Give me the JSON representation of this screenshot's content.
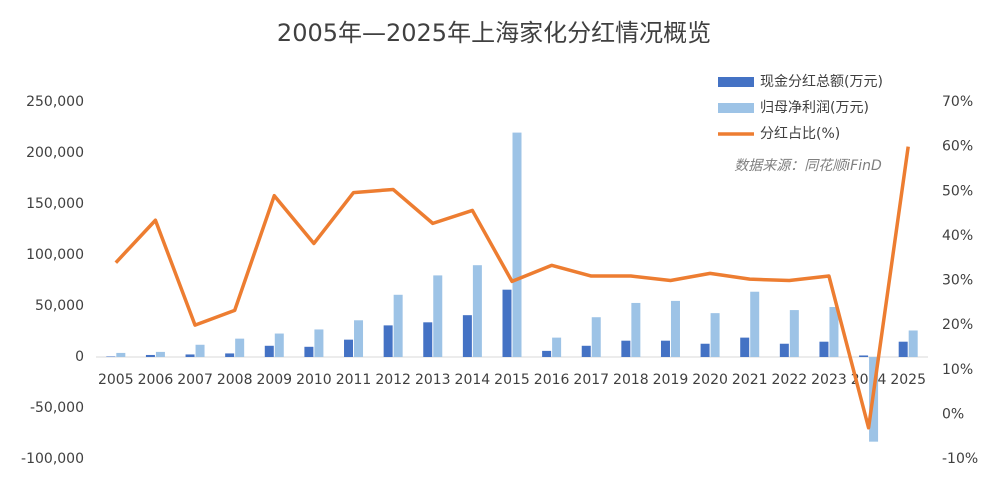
{
  "chart_data": {
    "type": "bar-line",
    "title": "2005年—2025年上海家化分红情况概览",
    "annotation": "数据来源：同花顺iFinD",
    "categories": [
      "2005",
      "2006",
      "2007",
      "2008",
      "2009",
      "2010",
      "2011",
      "2012",
      "2013",
      "2014",
      "2015",
      "2016",
      "2017",
      "2018",
      "2019",
      "2020",
      "2021",
      "2022",
      "2023",
      "2024",
      "2025"
    ],
    "series": [
      {
        "name": "现金分红总额(万元)",
        "color": "#4472c4",
        "type": "bar",
        "axis": "y",
        "values": [
          500,
          2000,
          2500,
          3500,
          11000,
          10000,
          17000,
          31000,
          34000,
          41000,
          66000,
          6000,
          11000,
          16000,
          16000,
          13000,
          19000,
          13000,
          15000,
          1500,
          15000
        ]
      },
      {
        "name": "归母净利润(万元)",
        "color": "#9dc3e6",
        "type": "bar",
        "axis": "y",
        "values": [
          4000,
          5000,
          12000,
          18000,
          23000,
          27000,
          36000,
          61000,
          80000,
          90000,
          220000,
          19000,
          39000,
          53000,
          55000,
          43000,
          64000,
          46000,
          49000,
          -83000,
          26000
        ]
      },
      {
        "name": "分红占比(%)",
        "color": "#ed7d31",
        "type": "line",
        "axis": "y2",
        "values": [
          34,
          43.5,
          20,
          23.3,
          49,
          38.3,
          49.7,
          50.4,
          42.8,
          45.7,
          29.8,
          33.4,
          31,
          31,
          30,
          31.6,
          30.3,
          30,
          31,
          -3,
          60
        ]
      }
    ],
    "ylim": [
      -100000,
      250000
    ],
    "yticks": [
      {
        "value": -100000,
        "label": "-100,000"
      },
      {
        "value": -50000,
        "label": "-50,000"
      },
      0,
      {
        "value": 50000,
        "label": "50,000"
      },
      {
        "value": 100000,
        "label": "100,000"
      },
      {
        "value": 150000,
        "label": "150,000"
      },
      {
        "value": 200000,
        "label": "200,000"
      },
      {
        "value": 250000,
        "label": "250,000"
      }
    ],
    "y2lim": [
      -10,
      70
    ],
    "y2ticks": [
      {
        "value": -10,
        "label": "-10%"
      },
      {
        "value": 0,
        "label": "0%"
      },
      {
        "value": 10,
        "label": "10%"
      },
      {
        "value": 20,
        "label": "20%"
      },
      {
        "value": 30,
        "label": "30%"
      },
      {
        "value": 40,
        "label": "40%"
      },
      {
        "value": 50,
        "label": "50%"
      },
      {
        "value": 60,
        "label": "60%"
      },
      {
        "value": 70,
        "label": "70%"
      }
    ],
    "grid": false,
    "legend": "top-right"
  }
}
